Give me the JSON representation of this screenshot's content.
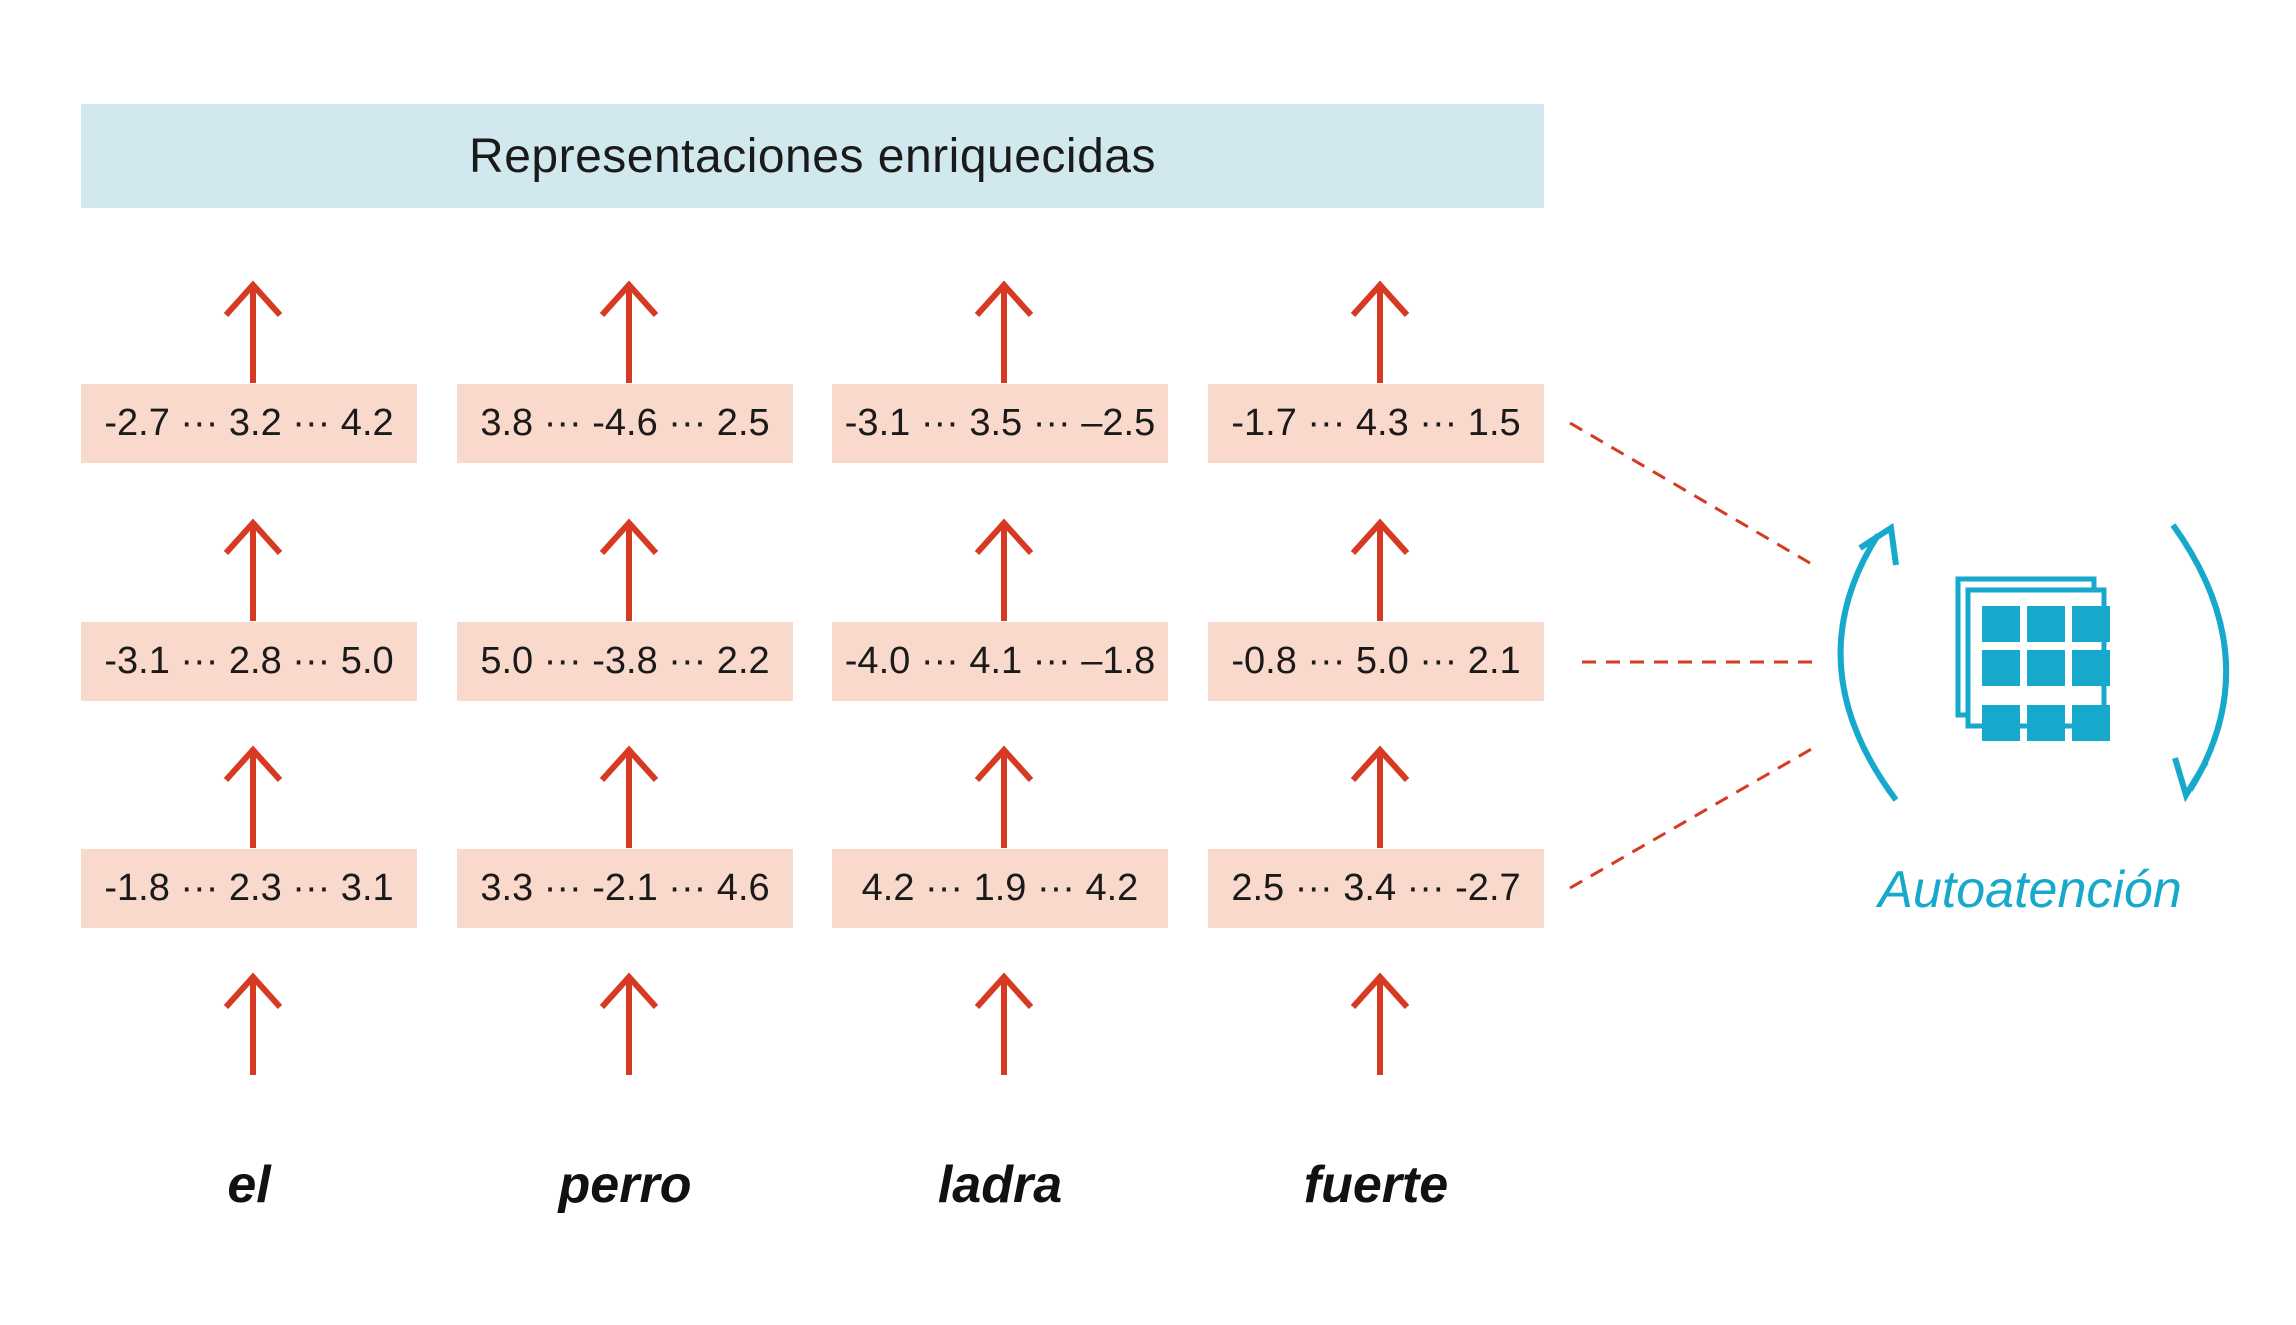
{
  "header": {
    "title": "Representaciones enriquecidas"
  },
  "layers": {
    "top": [
      "-2.7 ··· 3.2 ··· 4.2",
      "3.8 ··· -4.6 ··· 2.5",
      "-3.1 ··· 3.5 ··· –2.5",
      "-1.7 ··· 4.3 ··· 1.5"
    ],
    "middle": [
      "-3.1 ··· 2.8 ··· 5.0",
      "5.0 ··· -3.8 ··· 2.2",
      "-4.0 ··· 4.1 ··· –1.8",
      "-0.8 ··· 5.0 ··· 2.1"
    ],
    "bottom": [
      "-1.8 ··· 2.3 ··· 3.1",
      "3.3 ··· -2.1 ··· 4.6",
      "4.2 ··· 1.9 ··· 4.2",
      "2.5 ··· 3.4 ··· -2.7"
    ]
  },
  "words": [
    "el",
    "perro",
    "ladra",
    "fuerte"
  ],
  "self_attention": {
    "label": "Autoatención",
    "icon": "matrix-stack-icon",
    "color": "#17a9cc"
  },
  "colors": {
    "arrow": "#d63a22",
    "vector_box": "#f9d9cc",
    "header_box": "#d1e8ee"
  }
}
